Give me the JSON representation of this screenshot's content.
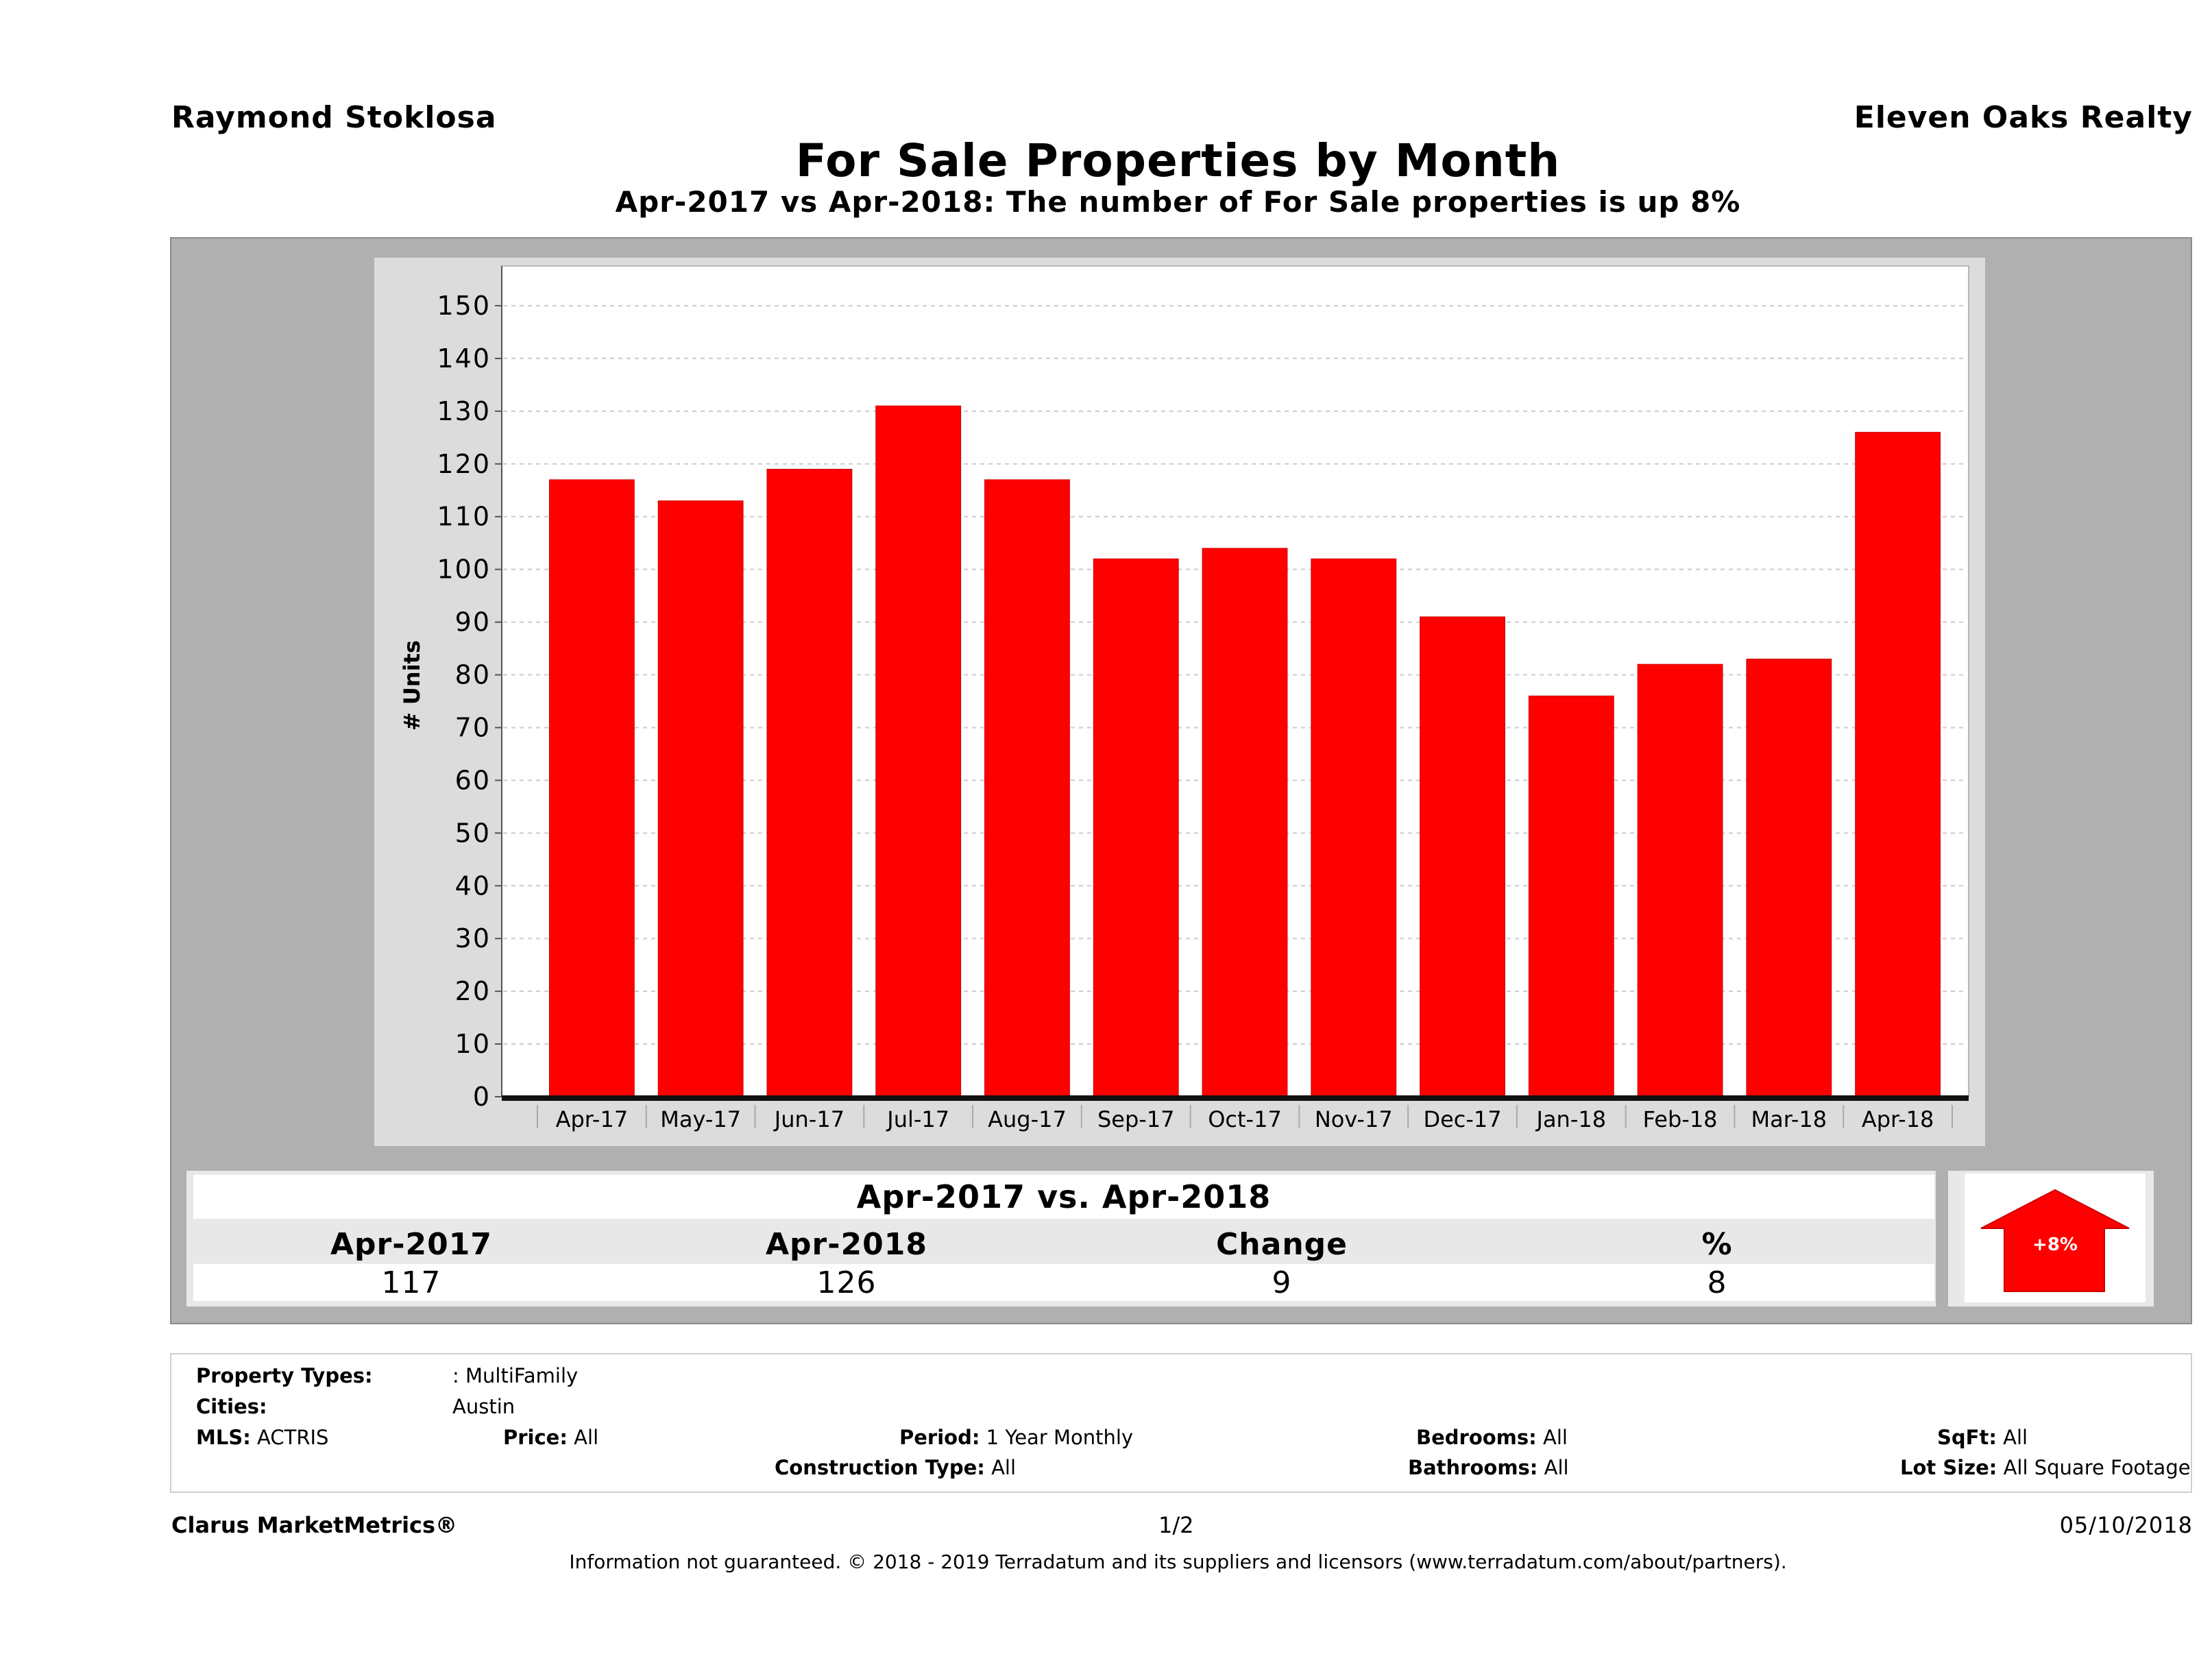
{
  "header": {
    "agent": "Raymond Stoklosa",
    "brokerage": "Eleven Oaks Realty",
    "title": "For Sale Properties by Month",
    "subtitle": "Apr-2017 vs Apr-2018: The number of For Sale  properties is up 8%"
  },
  "chart_data": {
    "type": "bar",
    "title": "For Sale Properties by Month",
    "xlabel": "",
    "ylabel": "# Units",
    "categories": [
      "Apr-17",
      "May-17",
      "Jun-17",
      "Jul-17",
      "Aug-17",
      "Sep-17",
      "Oct-17",
      "Nov-17",
      "Dec-17",
      "Jan-18",
      "Feb-18",
      "Mar-18",
      "Apr-18"
    ],
    "values": [
      117,
      113,
      119,
      131,
      117,
      102,
      104,
      102,
      91,
      76,
      82,
      83,
      126
    ],
    "ylim": [
      0,
      150
    ],
    "yticks": [
      0,
      10,
      20,
      30,
      40,
      50,
      60,
      70,
      80,
      90,
      100,
      110,
      120,
      130,
      140,
      150
    ],
    "grid": true,
    "legend": "none",
    "bar_color": "#ff0000"
  },
  "summary": {
    "title": "Apr-2017 vs. Apr-2018",
    "columns": [
      "Apr-2017",
      "Apr-2018",
      "Change",
      "%"
    ],
    "values": [
      "117",
      "126",
      "9",
      "8"
    ],
    "badge": "+8%",
    "badge_direction": "up",
    "badge_color": "#ff0000"
  },
  "filters": {
    "property_types_label": "Property Types:",
    "property_types_value": ": MultiFamily",
    "cities_label": "Cities:",
    "cities_value": "Austin",
    "mls_label": "MLS:",
    "mls_value": "ACTRIS",
    "price_label": "Price:",
    "price_value": "All",
    "period_label": "Period:",
    "period_value": "1 Year Monthly",
    "construction_label": "Construction Type:",
    "construction_value": "All",
    "bedrooms_label": "Bedrooms:",
    "bedrooms_value": "All",
    "bathrooms_label": "Bathrooms:",
    "bathrooms_value": "All",
    "sqft_label": "SqFt:",
    "sqft_value": "All",
    "lotsize_label": "Lot Size:",
    "lotsize_value": "All Square Footage"
  },
  "footer": {
    "product": "Clarus MarketMetrics®",
    "page": "1/2",
    "date": "05/10/2018",
    "disclaimer": "Information not guaranteed. © 2018 - 2019 Terradatum and its suppliers and licensors (www.terradatum.com/about/partners)."
  }
}
